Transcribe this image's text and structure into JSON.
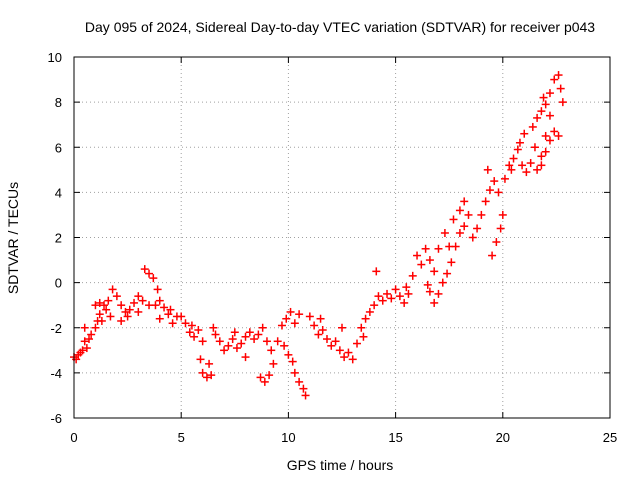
{
  "chart_data": {
    "type": "scatter",
    "title": "Day 095 of 2024, Sidereal Day-to-day VTEC variation (SDTVAR) for receiver p043",
    "xlabel": "GPS time / hours",
    "ylabel": "SDTVAR / TECUs",
    "xlim": [
      0,
      25
    ],
    "ylim": [
      -6,
      10
    ],
    "xticks": [
      0,
      5,
      10,
      15,
      20,
      25
    ],
    "yticks": [
      -6,
      -4,
      -2,
      0,
      2,
      4,
      6,
      8,
      10
    ],
    "grid": true,
    "marker": "+",
    "point_color": "#ff0000",
    "series": [
      {
        "points": [
          [
            0.0,
            -3.3
          ],
          [
            0.1,
            -3.4
          ],
          [
            0.2,
            -3.2
          ],
          [
            0.3,
            -3.1
          ],
          [
            0.4,
            -3.0
          ],
          [
            0.5,
            -2.6
          ],
          [
            0.6,
            -2.9
          ],
          [
            0.7,
            -2.5
          ],
          [
            0.5,
            -2.0
          ],
          [
            0.8,
            -2.3
          ],
          [
            1.0,
            -2.0
          ],
          [
            1.1,
            -1.7
          ],
          [
            1.2,
            -1.4
          ],
          [
            1.3,
            -1.7
          ],
          [
            1.5,
            -1.2
          ],
          [
            1.7,
            -1.5
          ],
          [
            1.0,
            -1.0
          ],
          [
            1.2,
            -0.9
          ],
          [
            1.4,
            -1.0
          ],
          [
            1.6,
            -0.8
          ],
          [
            1.8,
            -0.3
          ],
          [
            2.0,
            -0.6
          ],
          [
            2.2,
            -1.0
          ],
          [
            2.4,
            -1.3
          ],
          [
            2.6,
            -1.2
          ],
          [
            2.8,
            -0.9
          ],
          [
            3.0,
            -0.6
          ],
          [
            3.2,
            -0.8
          ],
          [
            3.3,
            0.6
          ],
          [
            3.5,
            0.4
          ],
          [
            3.7,
            0.2
          ],
          [
            3.9,
            -0.3
          ],
          [
            4.0,
            -0.8
          ],
          [
            4.2,
            -1.1
          ],
          [
            4.4,
            -1.4
          ],
          [
            4.6,
            -1.8
          ],
          [
            4.8,
            -1.5
          ],
          [
            2.2,
            -1.7
          ],
          [
            2.5,
            -1.5
          ],
          [
            3.0,
            -1.3
          ],
          [
            3.5,
            -1.0
          ],
          [
            4.0,
            -1.6
          ],
          [
            5.0,
            -1.5
          ],
          [
            5.2,
            -1.8
          ],
          [
            5.4,
            -2.2
          ],
          [
            5.6,
            -2.4
          ],
          [
            5.8,
            -2.1
          ],
          [
            6.0,
            -2.6
          ],
          [
            5.9,
            -3.4
          ],
          [
            6.0,
            -4.0
          ],
          [
            6.2,
            -4.2
          ],
          [
            6.4,
            -4.1
          ],
          [
            6.3,
            -3.6
          ],
          [
            6.6,
            -2.3
          ],
          [
            6.8,
            -2.6
          ],
          [
            7.0,
            -3.0
          ],
          [
            7.2,
            -2.8
          ],
          [
            7.4,
            -2.5
          ],
          [
            7.6,
            -2.9
          ],
          [
            7.8,
            -2.7
          ],
          [
            8.0,
            -2.4
          ],
          [
            8.2,
            -2.2
          ],
          [
            8.4,
            -2.5
          ],
          [
            8.6,
            -2.3
          ],
          [
            8.8,
            -2.0
          ],
          [
            9.0,
            -2.6
          ],
          [
            9.2,
            -3.0
          ],
          [
            8.7,
            -4.2
          ],
          [
            8.9,
            -4.4
          ],
          [
            9.1,
            -4.1
          ],
          [
            9.3,
            -3.6
          ],
          [
            9.5,
            -2.6
          ],
          [
            9.7,
            -1.9
          ],
          [
            9.9,
            -1.6
          ],
          [
            10.1,
            -1.3
          ],
          [
            10.3,
            -1.8
          ],
          [
            10.5,
            -1.4
          ],
          [
            9.8,
            -2.8
          ],
          [
            10.0,
            -3.2
          ],
          [
            10.2,
            -3.5
          ],
          [
            10.3,
            -4.0
          ],
          [
            10.5,
            -4.4
          ],
          [
            10.7,
            -4.7
          ],
          [
            10.8,
            -5.0
          ],
          [
            11.0,
            -1.5
          ],
          [
            11.2,
            -1.9
          ],
          [
            11.4,
            -2.3
          ],
          [
            11.6,
            -2.1
          ],
          [
            11.8,
            -2.5
          ],
          [
            12.0,
            -2.8
          ],
          [
            12.2,
            -2.6
          ],
          [
            12.4,
            -3.0
          ],
          [
            12.6,
            -3.3
          ],
          [
            12.8,
            -3.1
          ],
          [
            13.0,
            -3.4
          ],
          [
            13.2,
            -2.7
          ],
          [
            13.4,
            -2.0
          ],
          [
            13.6,
            -1.6
          ],
          [
            13.8,
            -1.3
          ],
          [
            14.0,
            -1.0
          ],
          [
            14.2,
            -0.6
          ],
          [
            14.4,
            -0.8
          ],
          [
            14.1,
            0.5
          ],
          [
            14.6,
            -0.5
          ],
          [
            14.8,
            -0.7
          ],
          [
            15.0,
            -0.3
          ],
          [
            15.2,
            -0.6
          ],
          [
            15.4,
            -0.9
          ],
          [
            15.6,
            -0.5
          ],
          [
            15.8,
            0.3
          ],
          [
            16.0,
            1.2
          ],
          [
            16.2,
            0.8
          ],
          [
            16.4,
            1.5
          ],
          [
            16.6,
            1.0
          ],
          [
            16.8,
            0.5
          ],
          [
            16.6,
            -0.4
          ],
          [
            16.8,
            -0.9
          ],
          [
            17.0,
            -0.5
          ],
          [
            17.2,
            0.0
          ],
          [
            17.4,
            0.4
          ],
          [
            17.6,
            0.9
          ],
          [
            17.8,
            1.6
          ],
          [
            18.0,
            2.2
          ],
          [
            18.2,
            2.5
          ],
          [
            17.3,
            2.2
          ],
          [
            17.5,
            1.6
          ],
          [
            17.7,
            2.8
          ],
          [
            18.0,
            3.2
          ],
          [
            18.2,
            3.6
          ],
          [
            18.4,
            3.0
          ],
          [
            18.6,
            2.0
          ],
          [
            18.8,
            2.4
          ],
          [
            19.0,
            3.0
          ],
          [
            19.2,
            3.6
          ],
          [
            19.4,
            4.1
          ],
          [
            19.6,
            4.5
          ],
          [
            19.8,
            4.0
          ],
          [
            19.5,
            1.2
          ],
          [
            19.7,
            1.8
          ],
          [
            19.9,
            2.4
          ],
          [
            20.0,
            3.0
          ],
          [
            20.1,
            4.6
          ],
          [
            20.3,
            5.2
          ],
          [
            20.5,
            5.5
          ],
          [
            20.7,
            5.9
          ],
          [
            20.9,
            5.2
          ],
          [
            21.1,
            4.9
          ],
          [
            21.3,
            5.3
          ],
          [
            21.5,
            6.0
          ],
          [
            20.8,
            6.2
          ],
          [
            21.0,
            6.6
          ],
          [
            21.4,
            6.9
          ],
          [
            21.6,
            7.3
          ],
          [
            21.8,
            7.6
          ],
          [
            22.0,
            7.9
          ],
          [
            22.2,
            8.4
          ],
          [
            22.4,
            9.0
          ],
          [
            22.6,
            9.2
          ],
          [
            22.7,
            8.6
          ],
          [
            22.8,
            8.0
          ],
          [
            22.0,
            6.5
          ],
          [
            22.2,
            6.3
          ],
          [
            22.4,
            6.7
          ],
          [
            22.6,
            6.5
          ],
          [
            21.6,
            5.0
          ],
          [
            21.8,
            5.2
          ],
          [
            22.0,
            5.8
          ],
          [
            22.2,
            7.4
          ],
          [
            21.9,
            8.2
          ],
          [
            21.8,
            5.6
          ],
          [
            19.3,
            5.0
          ],
          [
            20.4,
            5.0
          ],
          [
            17.0,
            1.5
          ],
          [
            15.5,
            -0.2
          ],
          [
            16.5,
            -0.1
          ],
          [
            12.5,
            -2.0
          ],
          [
            11.5,
            -1.6
          ],
          [
            13.5,
            -2.4
          ],
          [
            8.0,
            -3.3
          ],
          [
            7.5,
            -2.2
          ],
          [
            6.5,
            -2.0
          ],
          [
            5.5,
            -1.9
          ],
          [
            4.5,
            -1.2
          ],
          [
            3.8,
            -1.0
          ]
        ]
      }
    ]
  }
}
